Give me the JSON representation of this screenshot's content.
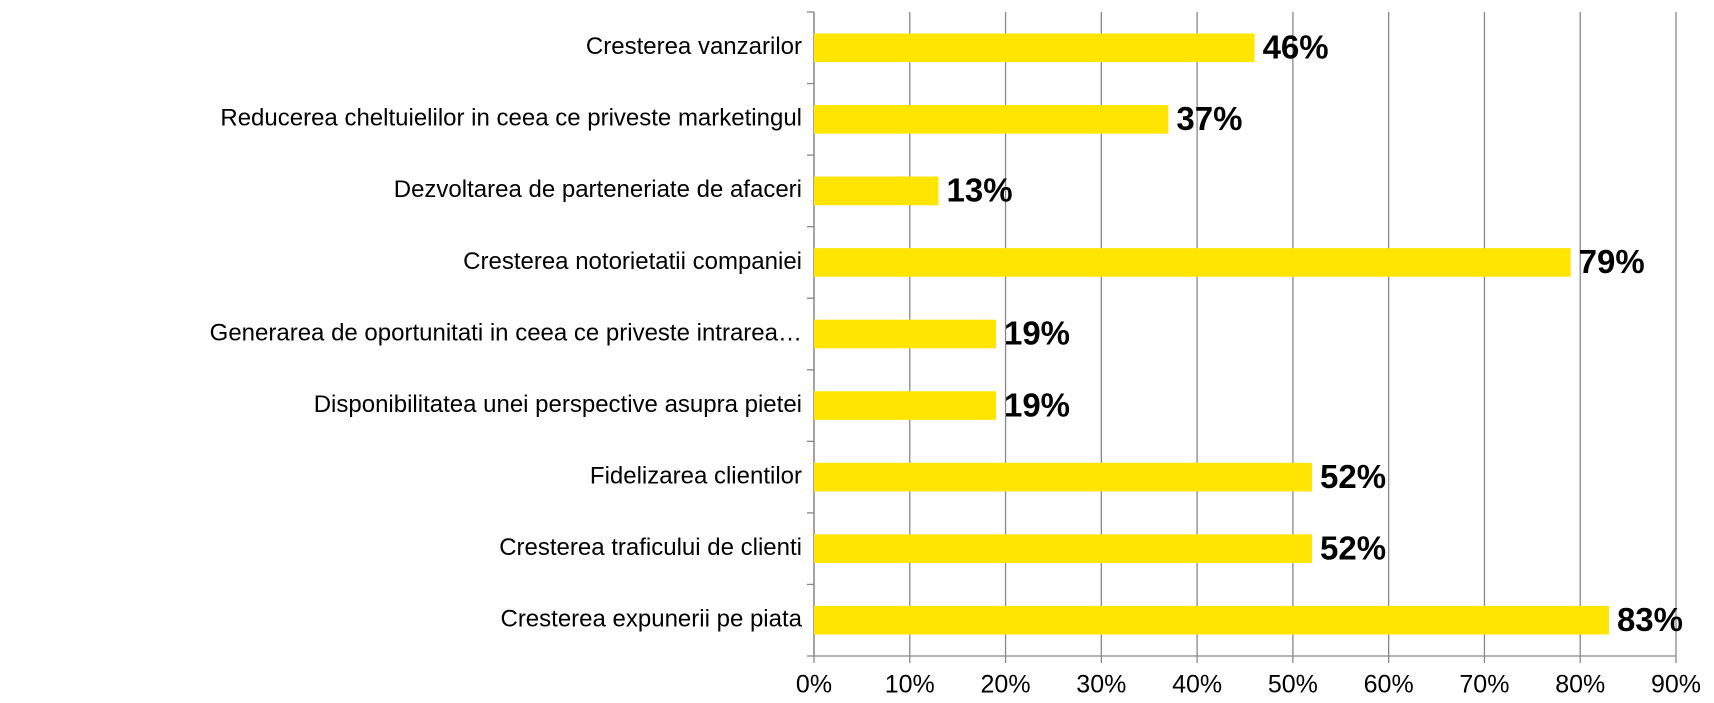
{
  "chart_data": {
    "type": "bar",
    "orientation": "horizontal",
    "categories": [
      "Cresterea vanzarilor",
      "Reducerea cheltuielilor in ceea ce priveste marketingul",
      "Dezvoltarea de parteneriate de afaceri",
      "Cresterea notorietatii companiei",
      "Generarea de oportunitati in ceea ce priveste intrarea…",
      "Disponibilitatea unei perspective asupra pietei",
      "Fidelizarea clientilor",
      "Cresterea traficului de clienti",
      "Cresterea expunerii pe piata"
    ],
    "values": [
      46,
      37,
      13,
      79,
      19,
      19,
      52,
      52,
      83
    ],
    "value_labels": [
      "46%",
      "37%",
      "13%",
      "79%",
      "19%",
      "19%",
      "52%",
      "52%",
      "83%"
    ],
    "color": "#FFE500",
    "xlim": [
      0,
      90
    ],
    "xticks": [
      {
        "value": 0,
        "label": "0%"
      },
      {
        "value": 10,
        "label": "10%"
      },
      {
        "value": 20,
        "label": "20%"
      },
      {
        "value": 30,
        "label": "30%"
      },
      {
        "value": 40,
        "label": "40%"
      },
      {
        "value": 50,
        "label": "50%"
      },
      {
        "value": 60,
        "label": "60%"
      },
      {
        "value": 70,
        "label": "70%"
      },
      {
        "value": 80,
        "label": "80%"
      },
      {
        "value": 90,
        "label": "90%"
      }
    ],
    "grid": true
  }
}
